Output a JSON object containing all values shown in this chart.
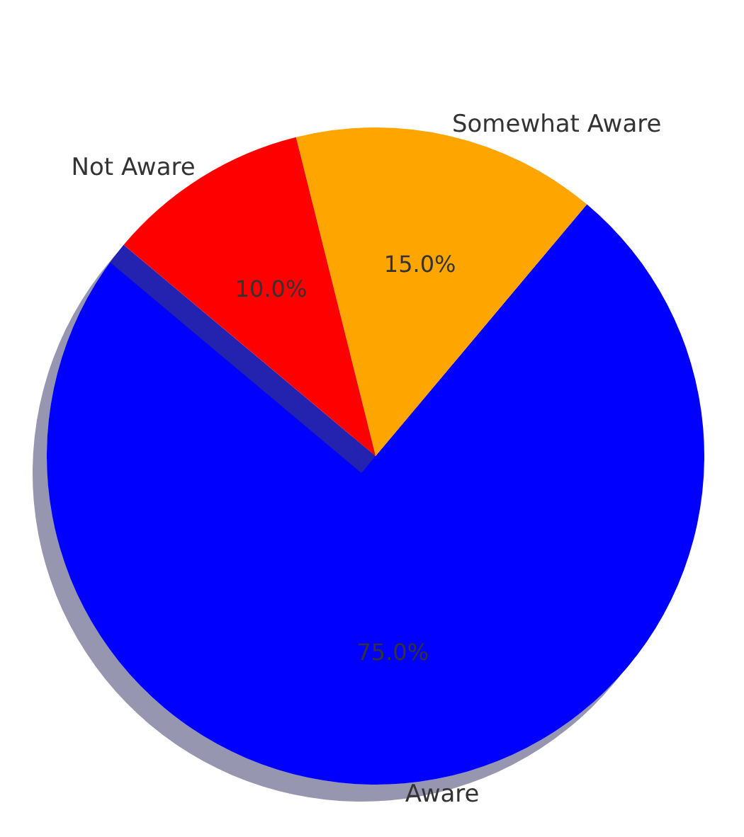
{
  "chart_data": {
    "type": "pie",
    "categories": [
      "Aware",
      "Somewhat Aware",
      "Not Aware"
    ],
    "values": [
      75,
      15,
      10
    ],
    "colors": [
      "#0000ff",
      "#ffa500",
      "#ff0000"
    ],
    "value_labels": [
      "75.0%",
      "15.0%",
      "10.0%"
    ],
    "legend": false
  }
}
